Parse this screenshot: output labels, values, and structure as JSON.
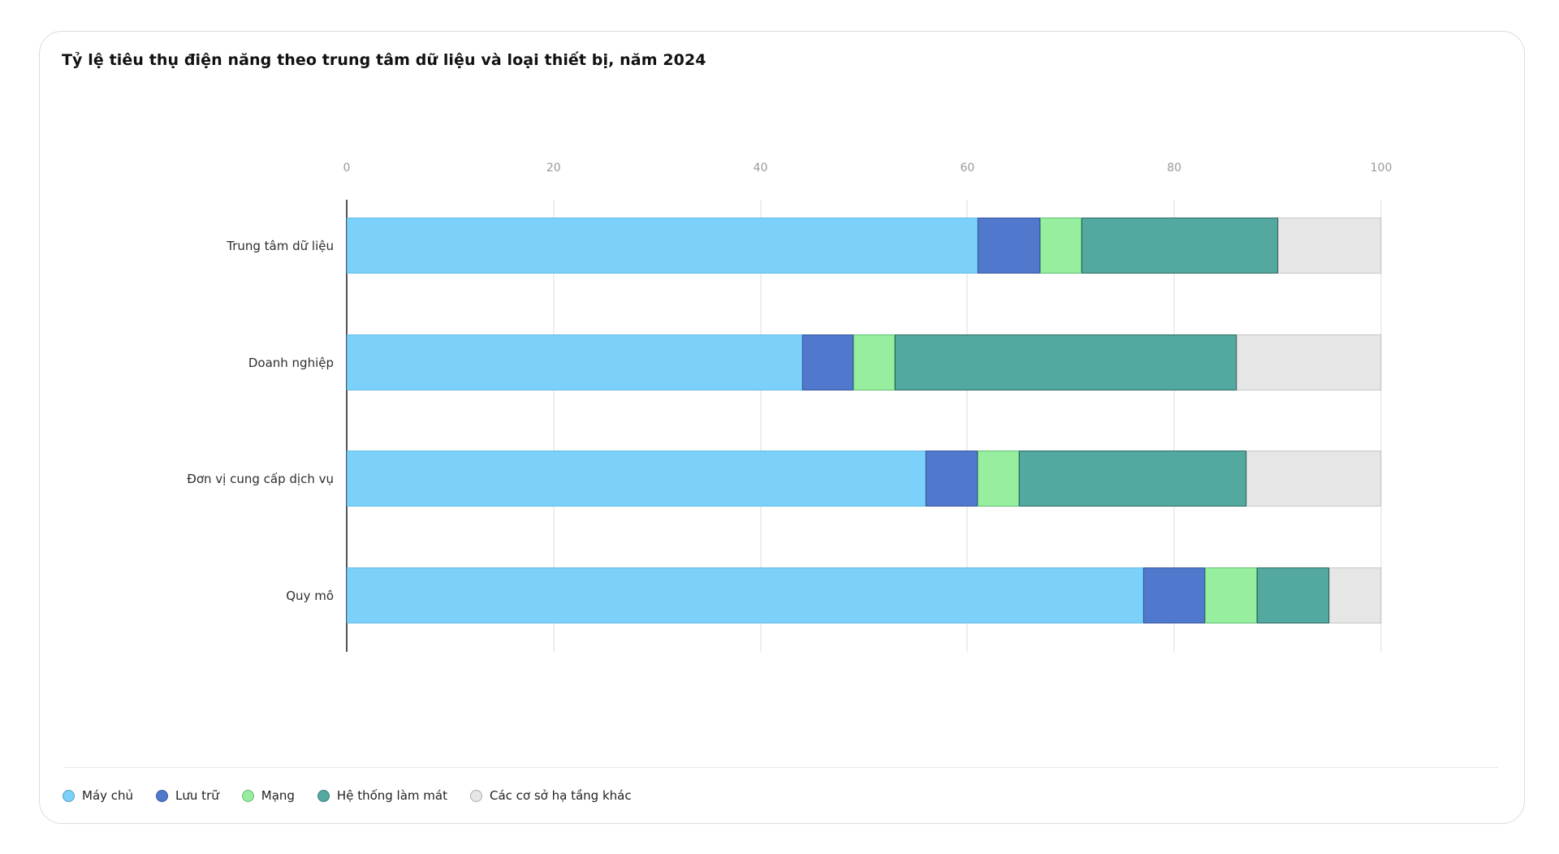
{
  "card": {
    "title": "Tỷ lệ tiêu thụ điện năng theo trung tâm dữ liệu và loại thiết bị, năm 2024"
  },
  "chart_data": {
    "type": "bar",
    "orientation": "horizontal",
    "stacked": true,
    "title": "Tỷ lệ tiêu thụ điện năng theo trung tâm dữ liệu và loại thiết bị, năm 2024",
    "categories": [
      "Trung tâm dữ liệu",
      "Doanh nghiệp",
      "Đơn vị cung cấp dịch vụ",
      "Quy mô"
    ],
    "series": [
      {
        "name": "Máy chủ",
        "color": "#7CD1FA",
        "border_color": "#64BCE6",
        "values": [
          61,
          44,
          56,
          77
        ]
      },
      {
        "name": "Lưu trữ",
        "color": "#5078CC",
        "border_color": "#39589F",
        "values": [
          6,
          5,
          5,
          6
        ]
      },
      {
        "name": "Mạng",
        "color": "#96EE9E",
        "border_color": "#5FBF72",
        "values": [
          4,
          4,
          4,
          5
        ]
      },
      {
        "name": "Hệ thống làm mát",
        "color": "#53A9A0",
        "border_color": "#2E6B65",
        "values": [
          19,
          33,
          22,
          7
        ]
      },
      {
        "name": "Các cơ sở hạ tầng khác",
        "color": "#E6E6E6",
        "border_color": "#C6C6C6",
        "values": [
          10,
          14,
          13,
          5
        ]
      }
    ],
    "x_ticks": [
      "0",
      "20",
      "40",
      "60",
      "80",
      "100"
    ],
    "xlim": [
      0,
      100
    ],
    "grid": true,
    "axis_line_color": "#555555",
    "gridline_color": "#dddddd",
    "legend_position": "bottom"
  }
}
